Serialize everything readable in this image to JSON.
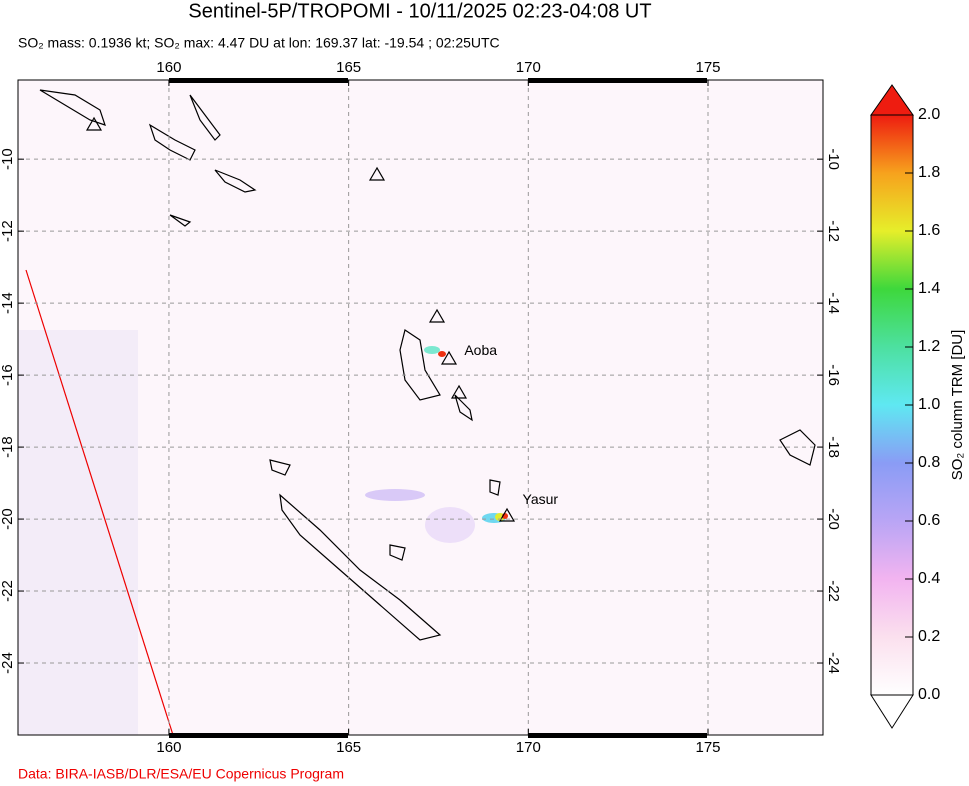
{
  "chart_data": {
    "type": "map",
    "title": "Sentinel-5P/TROPOMI - 10/11/2025 02:23-04:08 UT",
    "subtitle": "SO₂ mass: 0.1936 kt; SO₂ max: 4.47 DU at lon: 169.37 lat: -19.54 ; 02:25UTC",
    "xlim": [
      155.8,
      178.2
    ],
    "ylim": [
      -26,
      -7.8
    ],
    "xticks": [
      160,
      165,
      170,
      175
    ],
    "yticks": [
      -10,
      -12,
      -14,
      -16,
      -18,
      -20,
      -22,
      -24
    ],
    "grid": true,
    "annotations": [
      {
        "text": "Aoba",
        "lon": 167.83,
        "lat": -15.4
      },
      {
        "text": "Yasur",
        "lon": 169.45,
        "lat": -19.53
      }
    ],
    "colorbar": {
      "label": "SO₂ column TRM [DU]",
      "lim": [
        0,
        2
      ],
      "ticks": [
        {
          "value": 0,
          "label": "0.0"
        },
        0.2,
        0.4,
        0.6,
        0.8,
        {
          "value": 1,
          "label": "1.0"
        },
        1.2,
        1.4,
        1.6,
        1.8,
        {
          "value": 2,
          "label": "2.0"
        }
      ]
    },
    "credit": "Data: BIRA-IASB/DLR/ESA/EU Copernicus Program"
  }
}
